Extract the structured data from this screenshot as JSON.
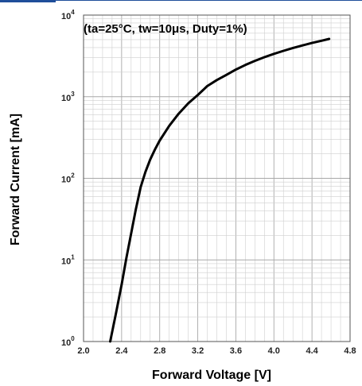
{
  "colors": {
    "accent": "#1f4e9a",
    "grid_minor": "#cfcfcf",
    "grid_major": "#a8a8a8",
    "curve": "#000000"
  },
  "chart_data": {
    "type": "line",
    "title": "",
    "annotation": "(ta=25°C, tw=10μs, Duty=1%)",
    "xlabel": "Forward Voltage [V]",
    "ylabel": "Forward Current [mA]",
    "xlim": [
      2.0,
      4.8
    ],
    "ylim": [
      1,
      10000
    ],
    "yscale": "log",
    "grid": true,
    "x_ticks": [
      "2.0",
      "2.4",
      "2.8",
      "3.2",
      "3.6",
      "4.0",
      "4.4",
      "4.8"
    ],
    "y_ticks": [
      {
        "base": "10",
        "exp": "0"
      },
      {
        "base": "10",
        "exp": "1"
      },
      {
        "base": "10",
        "exp": "2"
      },
      {
        "base": "10",
        "exp": "3"
      },
      {
        "base": "10",
        "exp": "4"
      }
    ],
    "series": [
      {
        "x": [
          2.28,
          2.34,
          2.4,
          2.45,
          2.5,
          2.55,
          2.6,
          2.65,
          2.7,
          2.75,
          2.8,
          2.9,
          3.0,
          3.1,
          3.2,
          3.3,
          3.4,
          3.5,
          3.6,
          3.7,
          3.8,
          3.9,
          4.0,
          4.1,
          4.2,
          4.3,
          4.4,
          4.5,
          4.58
        ],
        "y": [
          1.0,
          2.2,
          5.0,
          10.5,
          21,
          42,
          78,
          120,
          170,
          225,
          290,
          440,
          620,
          830,
          1050,
          1350,
          1600,
          1850,
          2150,
          2450,
          2750,
          3050,
          3350,
          3650,
          3950,
          4250,
          4550,
          4850,
          5100
        ]
      }
    ]
  }
}
